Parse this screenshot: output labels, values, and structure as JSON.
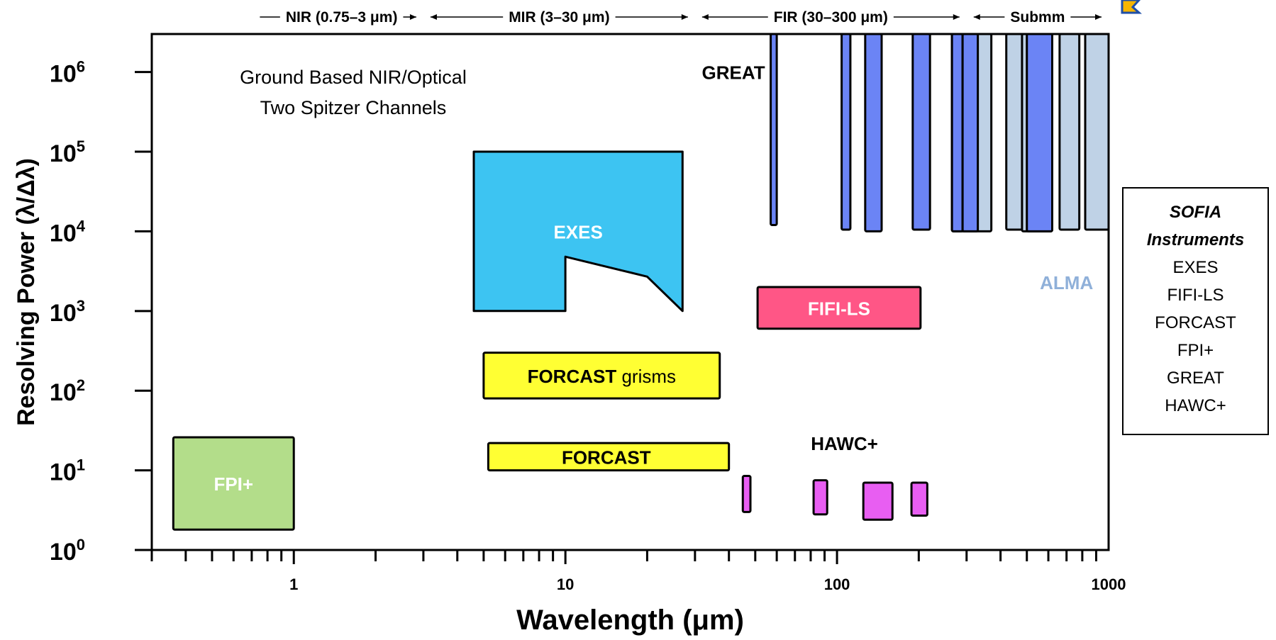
{
  "chart_data": {
    "type": "other",
    "xlabel": "Wavelength (μm)",
    "ylabel": "Resolving Power (λ/Δλ)",
    "x_scale": "log",
    "y_scale": "log",
    "xlim": [
      0.3,
      1000
    ],
    "ylim": [
      1,
      3000000
    ],
    "x_ticks": [
      {
        "value": 1,
        "label": "1"
      },
      {
        "value": 10,
        "label": "10"
      },
      {
        "value": 100,
        "label": "100"
      },
      {
        "value": 1000,
        "label": "1000"
      }
    ],
    "y_ticks": [
      {
        "exp": 0,
        "base": "10",
        "sup": "0"
      },
      {
        "exp": 1,
        "base": "10",
        "sup": "1"
      },
      {
        "exp": 2,
        "base": "10",
        "sup": "2"
      },
      {
        "exp": 3,
        "base": "10",
        "sup": "3"
      },
      {
        "exp": 4,
        "base": "10",
        "sup": "4"
      },
      {
        "exp": 5,
        "base": "10",
        "sup": "5"
      },
      {
        "exp": 6,
        "base": "10",
        "sup": "6"
      }
    ],
    "bands": [
      {
        "label": "NIR (0.75–3 μm)",
        "from": 0.75,
        "to": 3
      },
      {
        "label": "MIR (3–30 μm)",
        "from": 3,
        "to": 30
      },
      {
        "label": "FIR (30–300 μm)",
        "from": 30,
        "to": 300
      },
      {
        "label": "Submm",
        "from": 300,
        "to": 1000
      }
    ],
    "instruments": [
      {
        "name": "FPI+",
        "color": "#b3dd8a",
        "label_color": "#ffffff",
        "x_range": [
          0.36,
          1.0
        ],
        "r_range": [
          1.8,
          26
        ],
        "regions": [
          [
            0.36,
            1.8,
            1.0,
            26
          ]
        ]
      },
      {
        "name": "EXES",
        "color": "#3dc4f2",
        "label_color": "#ffffff",
        "x_range": [
          4.6,
          27
        ],
        "r_range": [
          1000,
          100000
        ],
        "outline": [
          [
            4.6,
            1000
          ],
          [
            4.6,
            100000
          ],
          [
            27,
            100000
          ],
          [
            27,
            1000
          ],
          [
            20,
            2700
          ],
          [
            10,
            4800
          ],
          [
            10,
            1000
          ]
        ]
      },
      {
        "name": "FORCAST",
        "extra_label": "grisms",
        "color": "#ffff33",
        "label_color": "#000000",
        "x_range": [
          5,
          37
        ],
        "r_range": [
          80,
          300
        ],
        "regions": [
          [
            5,
            80,
            37,
            300
          ]
        ]
      },
      {
        "name": "FORCAST",
        "color": "#ffff33",
        "label_color": "#000000",
        "x_range": [
          5,
          40
        ],
        "r_range": [
          10,
          22
        ],
        "regions": [
          [
            5.2,
            10,
            40,
            22
          ]
        ]
      },
      {
        "name": "FIFI-LS",
        "color": "#ff5686",
        "label_color": "#ffffff",
        "x_range": [
          51,
          203
        ],
        "r_range": [
          600,
          2000
        ],
        "regions": [
          [
            51,
            600,
            203,
            2000
          ]
        ]
      },
      {
        "name": "HAWC+",
        "color": "#e85ef2",
        "label_color": "#000000",
        "bands_um": [
          53,
          89,
          154,
          214
        ],
        "regions": [
          [
            45,
            3,
            48,
            8.5
          ],
          [
            82,
            2.8,
            92,
            7.5
          ],
          [
            125,
            2.4,
            160,
            7
          ],
          [
            188,
            2.7,
            215,
            7
          ]
        ]
      },
      {
        "name": "GREAT",
        "color": "#6b84f5",
        "label_color": "#000000",
        "regions": [
          [
            57,
            12000,
            60,
            3000000
          ],
          [
            104,
            10500,
            112,
            3000000
          ],
          [
            127,
            10000,
            146,
            3000000
          ],
          [
            190,
            10500,
            220,
            3000000
          ],
          [
            265,
            10000,
            290,
            3000000
          ],
          [
            290,
            10000,
            330,
            3000000
          ],
          [
            500,
            10000,
            620,
            3000000
          ]
        ]
      },
      {
        "name": "ALMA",
        "color": "#bfd2e6",
        "label_color": "#8fb0d9",
        "regions": [
          [
            265,
            10000,
            370,
            3000000
          ],
          [
            420,
            10500,
            500,
            3000000
          ],
          [
            480,
            10000,
            620,
            3000000
          ],
          [
            660,
            10500,
            780,
            3000000
          ],
          [
            820,
            10500,
            1000,
            3000000
          ]
        ]
      }
    ],
    "annotations": [
      "Ground Based NIR/Optical",
      "Two Spitzer Channels"
    ],
    "legend": {
      "title_lines": [
        "SOFIA",
        "Instruments"
      ],
      "items": [
        "EXES",
        "FIFI-LS",
        "FORCAST",
        "FPI+",
        "GREAT",
        "HAWC+"
      ],
      "placement": "right"
    },
    "grid": false
  },
  "colors": {
    "axis": "#000000",
    "background": "#ffffff"
  }
}
